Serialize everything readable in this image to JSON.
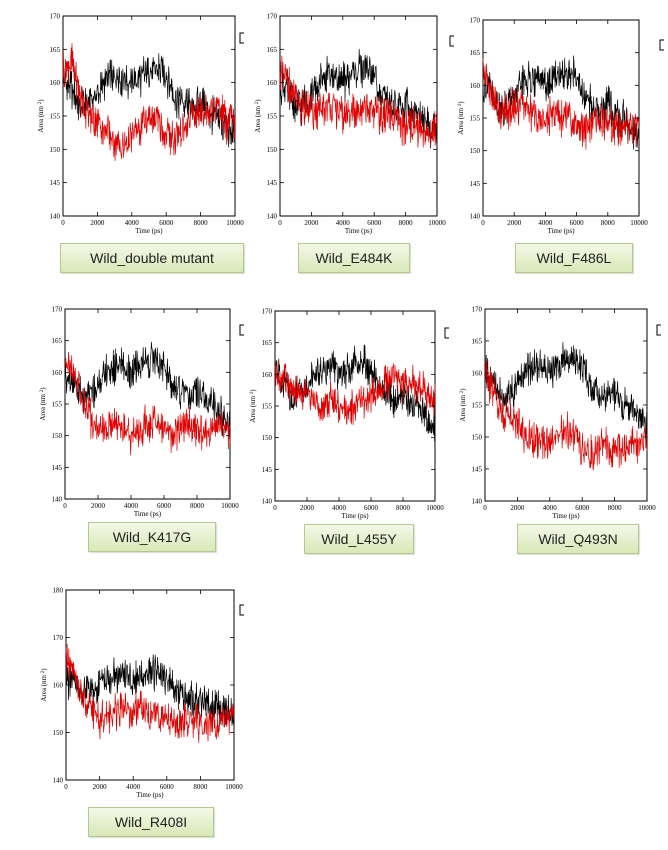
{
  "colors": {
    "wild": "#000000",
    "mutant": "#e00000"
  },
  "chart_data": [
    {
      "type": "line",
      "caption": "Wild_double mutant",
      "xlabel": "Time (ps)",
      "ylabel": "Area (nm",
      "ylabel_sup": "2",
      "ylabel_close": ")",
      "xlim": [
        0,
        10000
      ],
      "ylim": [
        140,
        170
      ],
      "xticks": [
        0,
        2000,
        4000,
        6000,
        8000,
        10000
      ],
      "yticks": [
        140,
        145,
        150,
        155,
        160,
        165,
        170
      ],
      "series": [
        {
          "color": "#000000",
          "x": [
            0,
            500,
            1000,
            1500,
            2000,
            2500,
            3000,
            3500,
            4000,
            4500,
            5000,
            5500,
            6000,
            6500,
            7000,
            7500,
            8000,
            8500,
            9000,
            9500,
            10000
          ],
          "y": [
            160,
            159,
            156,
            157,
            158,
            160,
            161,
            161,
            160,
            161,
            162,
            162,
            161,
            158,
            157,
            156,
            157,
            155,
            155,
            153,
            152
          ]
        },
        {
          "color": "#e00000",
          "x": [
            0,
            500,
            1000,
            1500,
            2000,
            2500,
            3000,
            3500,
            4000,
            4500,
            5000,
            5500,
            6000,
            6500,
            7000,
            7500,
            8000,
            8500,
            9000,
            9500,
            10000
          ],
          "y": [
            162,
            163,
            158,
            155,
            154,
            153,
            151,
            150,
            152,
            153,
            155,
            154,
            152,
            152,
            153,
            155,
            156,
            156,
            157,
            154,
            154
          ]
        }
      ]
    },
    {
      "type": "line",
      "caption": "Wild_E484K",
      "xlabel": "Time (ps)",
      "ylabel": "Area (nm",
      "ylabel_sup": "2",
      "ylabel_close": ")",
      "xlim": [
        0,
        10000
      ],
      "ylim": [
        140,
        170
      ],
      "xticks": [
        0,
        2000,
        4000,
        6000,
        8000,
        10000
      ],
      "yticks": [
        140,
        145,
        150,
        155,
        160,
        165,
        170
      ],
      "series": [
        {
          "color": "#000000",
          "x": [
            0,
            500,
            1000,
            1500,
            2000,
            2500,
            3000,
            3500,
            4000,
            4500,
            5000,
            5500,
            6000,
            6500,
            7000,
            7500,
            8000,
            8500,
            9000,
            9500,
            10000
          ],
          "y": [
            160,
            159,
            156,
            157,
            158,
            160,
            161,
            161,
            160,
            161,
            162,
            162,
            161,
            158,
            157,
            156,
            157,
            155,
            155,
            153,
            152
          ]
        },
        {
          "color": "#e00000",
          "x": [
            0,
            500,
            1000,
            1500,
            2000,
            2500,
            3000,
            3500,
            4000,
            4500,
            5000,
            5500,
            6000,
            6500,
            7000,
            7500,
            8000,
            8500,
            9000,
            9500,
            10000
          ],
          "y": [
            161,
            160,
            157,
            156,
            156,
            155,
            157,
            156,
            155,
            156,
            155,
            156,
            156,
            155,
            155,
            154,
            153,
            154,
            153,
            152,
            154
          ]
        }
      ]
    },
    {
      "type": "line",
      "caption": "Wild_F486L",
      "xlabel": "Time (ps)",
      "ylabel": "Area (nm",
      "ylabel_sup": "2",
      "ylabel_close": ")",
      "xlim": [
        0,
        10000
      ],
      "ylim": [
        140,
        170
      ],
      "xticks": [
        0,
        2000,
        4000,
        6000,
        8000,
        10000
      ],
      "yticks": [
        140,
        145,
        150,
        155,
        160,
        165,
        170
      ],
      "series": [
        {
          "color": "#000000",
          "x": [
            0,
            500,
            1000,
            1500,
            2000,
            2500,
            3000,
            3500,
            4000,
            4500,
            5000,
            5500,
            6000,
            6500,
            7000,
            7500,
            8000,
            8500,
            9000,
            9500,
            10000
          ],
          "y": [
            160,
            159,
            156,
            157,
            158,
            160,
            161,
            161,
            160,
            161,
            162,
            162,
            161,
            158,
            157,
            156,
            157,
            155,
            155,
            153,
            152
          ]
        },
        {
          "color": "#e00000",
          "x": [
            0,
            500,
            1000,
            1500,
            2000,
            2500,
            3000,
            3500,
            4000,
            4500,
            5000,
            5500,
            6000,
            6500,
            7000,
            7500,
            8000,
            8500,
            9000,
            9500,
            10000
          ],
          "y": [
            163,
            159,
            156,
            156,
            157,
            157,
            156,
            155,
            155,
            156,
            155,
            155,
            154,
            153,
            154,
            155,
            154,
            153,
            154,
            153,
            154
          ]
        }
      ]
    },
    {
      "type": "line",
      "caption": "Wild_K417G",
      "xlabel": "Time (ps)",
      "ylabel": "Area (nm",
      "ylabel_sup": "2",
      "ylabel_close": ")",
      "xlim": [
        0,
        10000
      ],
      "ylim": [
        140,
        170
      ],
      "xticks": [
        0,
        2000,
        4000,
        6000,
        8000,
        10000
      ],
      "yticks": [
        140,
        145,
        150,
        155,
        160,
        165,
        170
      ],
      "series": [
        {
          "color": "#000000",
          "x": [
            0,
            500,
            1000,
            1500,
            2000,
            2500,
            3000,
            3500,
            4000,
            4500,
            5000,
            5500,
            6000,
            6500,
            7000,
            7500,
            8000,
            8500,
            9000,
            9500,
            10000
          ],
          "y": [
            160,
            159,
            156,
            157,
            158,
            160,
            161,
            161,
            160,
            161,
            162,
            162,
            161,
            158,
            157,
            156,
            157,
            155,
            155,
            153,
            152
          ]
        },
        {
          "color": "#e00000",
          "x": [
            0,
            500,
            1000,
            1500,
            2000,
            2500,
            3000,
            3500,
            4000,
            4500,
            5000,
            5500,
            6000,
            6500,
            7000,
            7500,
            8000,
            8500,
            9000,
            9500,
            10000
          ],
          "y": [
            162,
            160,
            156,
            153,
            151,
            151,
            152,
            151,
            150,
            151,
            152,
            152,
            151,
            150,
            151,
            152,
            151,
            150,
            152,
            152,
            150
          ]
        }
      ]
    },
    {
      "type": "line",
      "caption": "Wild_L455Y",
      "xlabel": "Time (ps)",
      "ylabel": "Area (nm",
      "ylabel_sup": "2",
      "ylabel_close": ")",
      "xlim": [
        0,
        10000
      ],
      "ylim": [
        140,
        170
      ],
      "xticks": [
        0,
        2000,
        4000,
        6000,
        8000,
        10000
      ],
      "yticks": [
        140,
        145,
        150,
        155,
        160,
        165,
        170
      ],
      "series": [
        {
          "color": "#000000",
          "x": [
            0,
            500,
            1000,
            1500,
            2000,
            2500,
            3000,
            3500,
            4000,
            4500,
            5000,
            5500,
            6000,
            6500,
            7000,
            7500,
            8000,
            8500,
            9000,
            9500,
            10000
          ],
          "y": [
            160,
            159,
            156,
            157,
            158,
            160,
            161,
            161,
            160,
            161,
            162,
            162,
            161,
            158,
            157,
            156,
            157,
            155,
            155,
            153,
            152
          ]
        },
        {
          "color": "#e00000",
          "x": [
            0,
            500,
            1000,
            1500,
            2000,
            2500,
            3000,
            3500,
            4000,
            4500,
            5000,
            5500,
            6000,
            6500,
            7000,
            7500,
            8000,
            8500,
            9000,
            9500,
            10000
          ],
          "y": [
            159,
            160,
            158,
            157,
            157,
            156,
            155,
            156,
            155,
            154,
            155,
            156,
            156,
            158,
            159,
            160,
            158,
            159,
            158,
            157,
            156
          ]
        }
      ]
    },
    {
      "type": "line",
      "caption": "Wild_Q493N",
      "xlabel": "Time (ps)",
      "ylabel": "Area (nm",
      "ylabel_sup": "2",
      "ylabel_close": ")",
      "xlim": [
        0,
        10000
      ],
      "ylim": [
        140,
        170
      ],
      "xticks": [
        0,
        2000,
        4000,
        6000,
        8000,
        10000
      ],
      "yticks": [
        140,
        145,
        150,
        155,
        160,
        165,
        170
      ],
      "series": [
        {
          "color": "#000000",
          "x": [
            0,
            500,
            1000,
            1500,
            2000,
            2500,
            3000,
            3500,
            4000,
            4500,
            5000,
            5500,
            6000,
            6500,
            7000,
            7500,
            8000,
            8500,
            9000,
            9500,
            10000
          ],
          "y": [
            160,
            159,
            156,
            157,
            158,
            160,
            161,
            161,
            160,
            161,
            162,
            162,
            161,
            158,
            157,
            156,
            157,
            155,
            155,
            153,
            152
          ]
        },
        {
          "color": "#e00000",
          "x": [
            0,
            500,
            1000,
            1500,
            2000,
            2500,
            3000,
            3500,
            4000,
            4500,
            5000,
            5500,
            6000,
            6500,
            7000,
            7500,
            8000,
            8500,
            9000,
            9500,
            10000
          ],
          "y": [
            160,
            157,
            154,
            153,
            152,
            150,
            150,
            149,
            149,
            150,
            151,
            150,
            148,
            147,
            148,
            149,
            148,
            148,
            149,
            148,
            150
          ]
        }
      ]
    },
    {
      "type": "line",
      "caption": "Wild_R408I",
      "xlabel": "Time (ps)",
      "ylabel": "Area (nm",
      "ylabel_sup": "2",
      "ylabel_close": ")",
      "xlim": [
        0,
        10000
      ],
      "ylim": [
        140,
        180
      ],
      "xticks": [
        0,
        2000,
        4000,
        6000,
        8000,
        10000
      ],
      "yticks": [
        140,
        150,
        160,
        170,
        180
      ],
      "series": [
        {
          "color": "#000000",
          "x": [
            0,
            500,
            1000,
            1500,
            2000,
            2500,
            3000,
            3500,
            4000,
            4500,
            5000,
            5500,
            6000,
            6500,
            7000,
            7500,
            8000,
            8500,
            9000,
            9500,
            10000
          ],
          "y": [
            161,
            160,
            158,
            159,
            160,
            161,
            162,
            162,
            161,
            162,
            163,
            162,
            161,
            159,
            158,
            157,
            157,
            156,
            155,
            154,
            155
          ]
        },
        {
          "color": "#e00000",
          "x": [
            0,
            500,
            1000,
            1500,
            2000,
            2500,
            3000,
            3500,
            4000,
            4500,
            5000,
            5500,
            6000,
            6500,
            7000,
            7500,
            8000,
            8500,
            9000,
            9500,
            10000
          ],
          "y": [
            166,
            162,
            157,
            155,
            153,
            154,
            154,
            155,
            154,
            155,
            154,
            153,
            153,
            152,
            152,
            153,
            152,
            151,
            152,
            153,
            154
          ]
        }
      ]
    }
  ]
}
